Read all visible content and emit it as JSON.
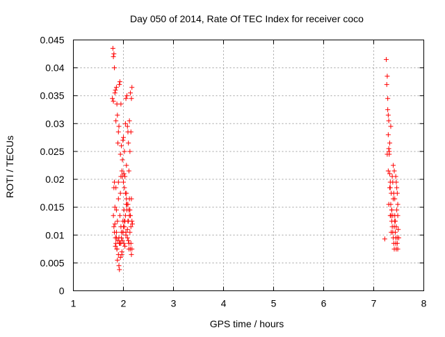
{
  "chart_data": {
    "type": "scatter",
    "title": "Day 050 of 2014, Rate Of TEC Index for receiver coco",
    "xlabel": "GPS time / hours",
    "ylabel": "ROTI / TECUs",
    "xlim": [
      1,
      8
    ],
    "ylim": [
      0,
      0.045
    ],
    "grid": true,
    "marker": "+",
    "color": "#ff0000",
    "xticks": [
      {
        "value": 1,
        "label": "1"
      },
      {
        "value": 2,
        "label": "2"
      },
      {
        "value": 3,
        "label": "3"
      },
      {
        "value": 4,
        "label": "4"
      },
      {
        "value": 5,
        "label": "5"
      },
      {
        "value": 6,
        "label": "6"
      },
      {
        "value": 7,
        "label": "7"
      },
      {
        "value": 8,
        "label": "8"
      }
    ],
    "yticks": [
      {
        "value": 0,
        "label": "0"
      },
      {
        "value": 0.005,
        "label": "0.005"
      },
      {
        "value": 0.01,
        "label": "0.01"
      },
      {
        "value": 0.015,
        "label": "0.015"
      },
      {
        "value": 0.02,
        "label": "0.02"
      },
      {
        "value": 0.025,
        "label": "0.025"
      },
      {
        "value": 0.03,
        "label": "0.03"
      },
      {
        "value": 0.035,
        "label": "0.035"
      },
      {
        "value": 0.04,
        "label": "0.04"
      },
      {
        "value": 0.045,
        "label": "0.045"
      }
    ],
    "series": [
      {
        "name": "coco",
        "x": [
          1.78,
          1.79,
          1.8,
          1.8,
          1.81,
          1.81,
          1.82,
          1.82,
          1.83,
          1.83,
          1.84,
          1.84,
          1.85,
          1.85,
          1.86,
          1.86,
          1.87,
          1.87,
          1.88,
          1.88,
          1.89,
          1.89,
          1.9,
          1.9,
          1.91,
          1.91,
          1.92,
          1.92,
          1.93,
          1.93,
          1.94,
          1.94,
          1.95,
          1.95,
          1.96,
          1.96,
          1.97,
          1.97,
          1.98,
          1.98,
          1.99,
          1.99,
          2.0,
          2.0,
          2.01,
          2.01,
          2.02,
          2.02,
          2.03,
          2.03,
          2.04,
          2.04,
          2.05,
          2.05,
          2.06,
          2.06,
          2.07,
          2.07,
          2.08,
          2.08,
          2.09,
          2.09,
          2.1,
          2.1,
          2.11,
          2.11,
          2.12,
          2.12,
          2.13,
          2.13,
          2.14,
          2.14,
          2.15,
          2.15,
          2.16,
          2.16,
          2.17,
          2.17,
          2.18,
          1.8,
          1.83,
          1.86,
          1.9,
          1.93,
          1.96,
          1.99,
          2.02,
          2.05,
          2.08,
          2.11,
          2.14,
          1.84,
          1.88,
          1.92,
          1.97,
          2.01,
          2.06,
          2.1,
          2.15,
          1.85,
          1.9,
          1.95,
          2.0,
          2.04,
          2.09,
          2.13,
          1.82,
          1.87,
          1.91,
          1.95,
          1.99,
          2.03,
          2.07,
          2.12,
          2.16,
          1.81,
          1.86,
          1.94,
          1.98,
          2.02,
          2.06,
          2.11,
          2.17,
          7.22,
          7.25,
          7.26,
          7.27,
          7.28,
          7.28,
          7.29,
          7.29,
          7.3,
          7.3,
          7.31,
          7.31,
          7.32,
          7.32,
          7.33,
          7.33,
          7.34,
          7.34,
          7.35,
          7.35,
          7.36,
          7.36,
          7.37,
          7.37,
          7.38,
          7.38,
          7.39,
          7.39,
          7.4,
          7.4,
          7.41,
          7.41,
          7.42,
          7.42,
          7.43,
          7.43,
          7.44,
          7.44,
          7.45,
          7.45,
          7.46,
          7.46,
          7.47,
          7.47,
          7.48,
          7.48,
          7.49,
          7.5,
          7.27,
          7.3,
          7.33,
          7.36,
          7.39,
          7.42,
          7.45,
          7.48,
          7.29,
          7.32,
          7.35,
          7.38,
          7.41,
          7.44,
          7.47
        ],
        "y": [
          0.0345,
          0.0435,
          0.042,
          0.034,
          0.0425,
          0.0185,
          0.04,
          0.0195,
          0.0355,
          0.012,
          0.036,
          0.008,
          0.0305,
          0.0085,
          0.0365,
          0.0105,
          0.0335,
          0.0075,
          0.0315,
          0.0055,
          0.0265,
          0.009,
          0.0285,
          0.0065,
          0.0295,
          0.0045,
          0.037,
          0.0038,
          0.0375,
          0.0085,
          0.0245,
          0.006,
          0.0335,
          0.0115,
          0.026,
          0.0095,
          0.0215,
          0.007,
          0.0235,
          0.009,
          0.027,
          0.0105,
          0.0275,
          0.0115,
          0.021,
          0.0085,
          0.025,
          0.0125,
          0.0205,
          0.008,
          0.03,
          0.0135,
          0.0345,
          0.01,
          0.0225,
          0.0155,
          0.035,
          0.0145,
          0.0295,
          0.011,
          0.0285,
          0.0125,
          0.0265,
          0.009,
          0.0215,
          0.0075,
          0.0305,
          0.0165,
          0.025,
          0.0105,
          0.0355,
          0.0135,
          0.0285,
          0.0085,
          0.0345,
          0.0065,
          0.0365,
          0.0075,
          0.012,
          0.0135,
          0.015,
          0.0145,
          0.0165,
          0.0135,
          0.0105,
          0.0125,
          0.0115,
          0.0105,
          0.0095,
          0.0085,
          0.0075,
          0.0095,
          0.0125,
          0.0085,
          0.0065,
          0.0145,
          0.0175,
          0.0125,
          0.0115,
          0.0185,
          0.0195,
          0.0205,
          0.0195,
          0.0175,
          0.0155,
          0.0145,
          0.0105,
          0.0075,
          0.0095,
          0.0085,
          0.0105,
          0.0125,
          0.0155,
          0.0135,
          0.0165,
          0.0115,
          0.0095,
          0.0175,
          0.0205,
          0.0185,
          0.0165,
          0.0145,
          0.0125,
          0.0093,
          0.0415,
          0.037,
          0.0385,
          0.0345,
          0.0325,
          0.0315,
          0.028,
          0.0305,
          0.0255,
          0.025,
          0.0245,
          0.021,
          0.0265,
          0.0195,
          0.0185,
          0.0295,
          0.0155,
          0.0175,
          0.0135,
          0.0145,
          0.0125,
          0.0205,
          0.0115,
          0.0195,
          0.0105,
          0.0225,
          0.0095,
          0.0175,
          0.0085,
          0.0215,
          0.0075,
          0.0165,
          0.0135,
          0.0125,
          0.0105,
          0.0205,
          0.0085,
          0.0195,
          0.0075,
          0.0185,
          0.0145,
          0.0175,
          0.0095,
          0.0135,
          0.0155,
          0.011,
          0.0095,
          0.0245,
          0.0155,
          0.0135,
          0.0145,
          0.0165,
          0.0125,
          0.0115,
          0.0075,
          0.0215,
          0.0185,
          0.0105,
          0.0135,
          0.0115,
          0.0095,
          0.0085
        ]
      }
    ]
  }
}
